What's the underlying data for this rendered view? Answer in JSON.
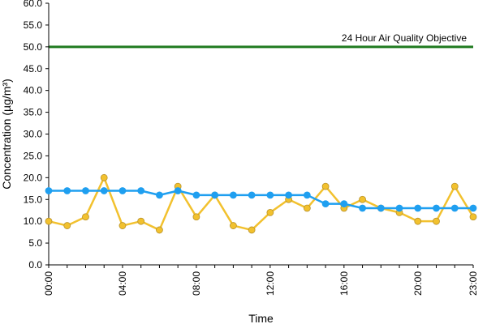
{
  "chart_data": {
    "type": "line",
    "xlabel": "Time",
    "ylabel": "Concentration (µg/m³)",
    "ylim": [
      0,
      60
    ],
    "yticks": [
      "0.0",
      "5.0",
      "10.0",
      "15.0",
      "20.0",
      "25.0",
      "30.0",
      "35.0",
      "40.0",
      "45.0",
      "50.0",
      "55.0",
      "60.0"
    ],
    "x": [
      "00:00",
      "01:00",
      "02:00",
      "03:00",
      "04:00",
      "05:00",
      "06:00",
      "07:00",
      "08:00",
      "09:00",
      "10:00",
      "11:00",
      "12:00",
      "13:00",
      "14:00",
      "15:00",
      "16:00",
      "17:00",
      "18:00",
      "19:00",
      "20:00",
      "21:00",
      "22:00",
      "23:00"
    ],
    "xtick_labels": [
      "00:00",
      "04:00",
      "08:00",
      "12:00",
      "16:00",
      "20:00",
      "23:00"
    ],
    "series": [
      {
        "color": "#f2c12e",
        "marker": "circle",
        "values": [
          10,
          9,
          11,
          20,
          9,
          10,
          8,
          18,
          11,
          16,
          9,
          8,
          12,
          15,
          13,
          18,
          13,
          15,
          13,
          12,
          10,
          10,
          18,
          11
        ]
      },
      {
        "color": "#1f9ff0",
        "marker": "circle",
        "values": [
          17,
          17,
          17,
          17,
          17,
          17,
          16,
          17,
          16,
          16,
          16,
          16,
          16,
          16,
          16,
          14,
          14,
          13,
          13,
          13,
          13,
          13,
          13,
          13
        ]
      }
    ],
    "reference_line": {
      "value": 50,
      "label": "24 Hour Air Quality Objective",
      "color": "#1f7a1f"
    },
    "grid": false,
    "legend": "none"
  }
}
